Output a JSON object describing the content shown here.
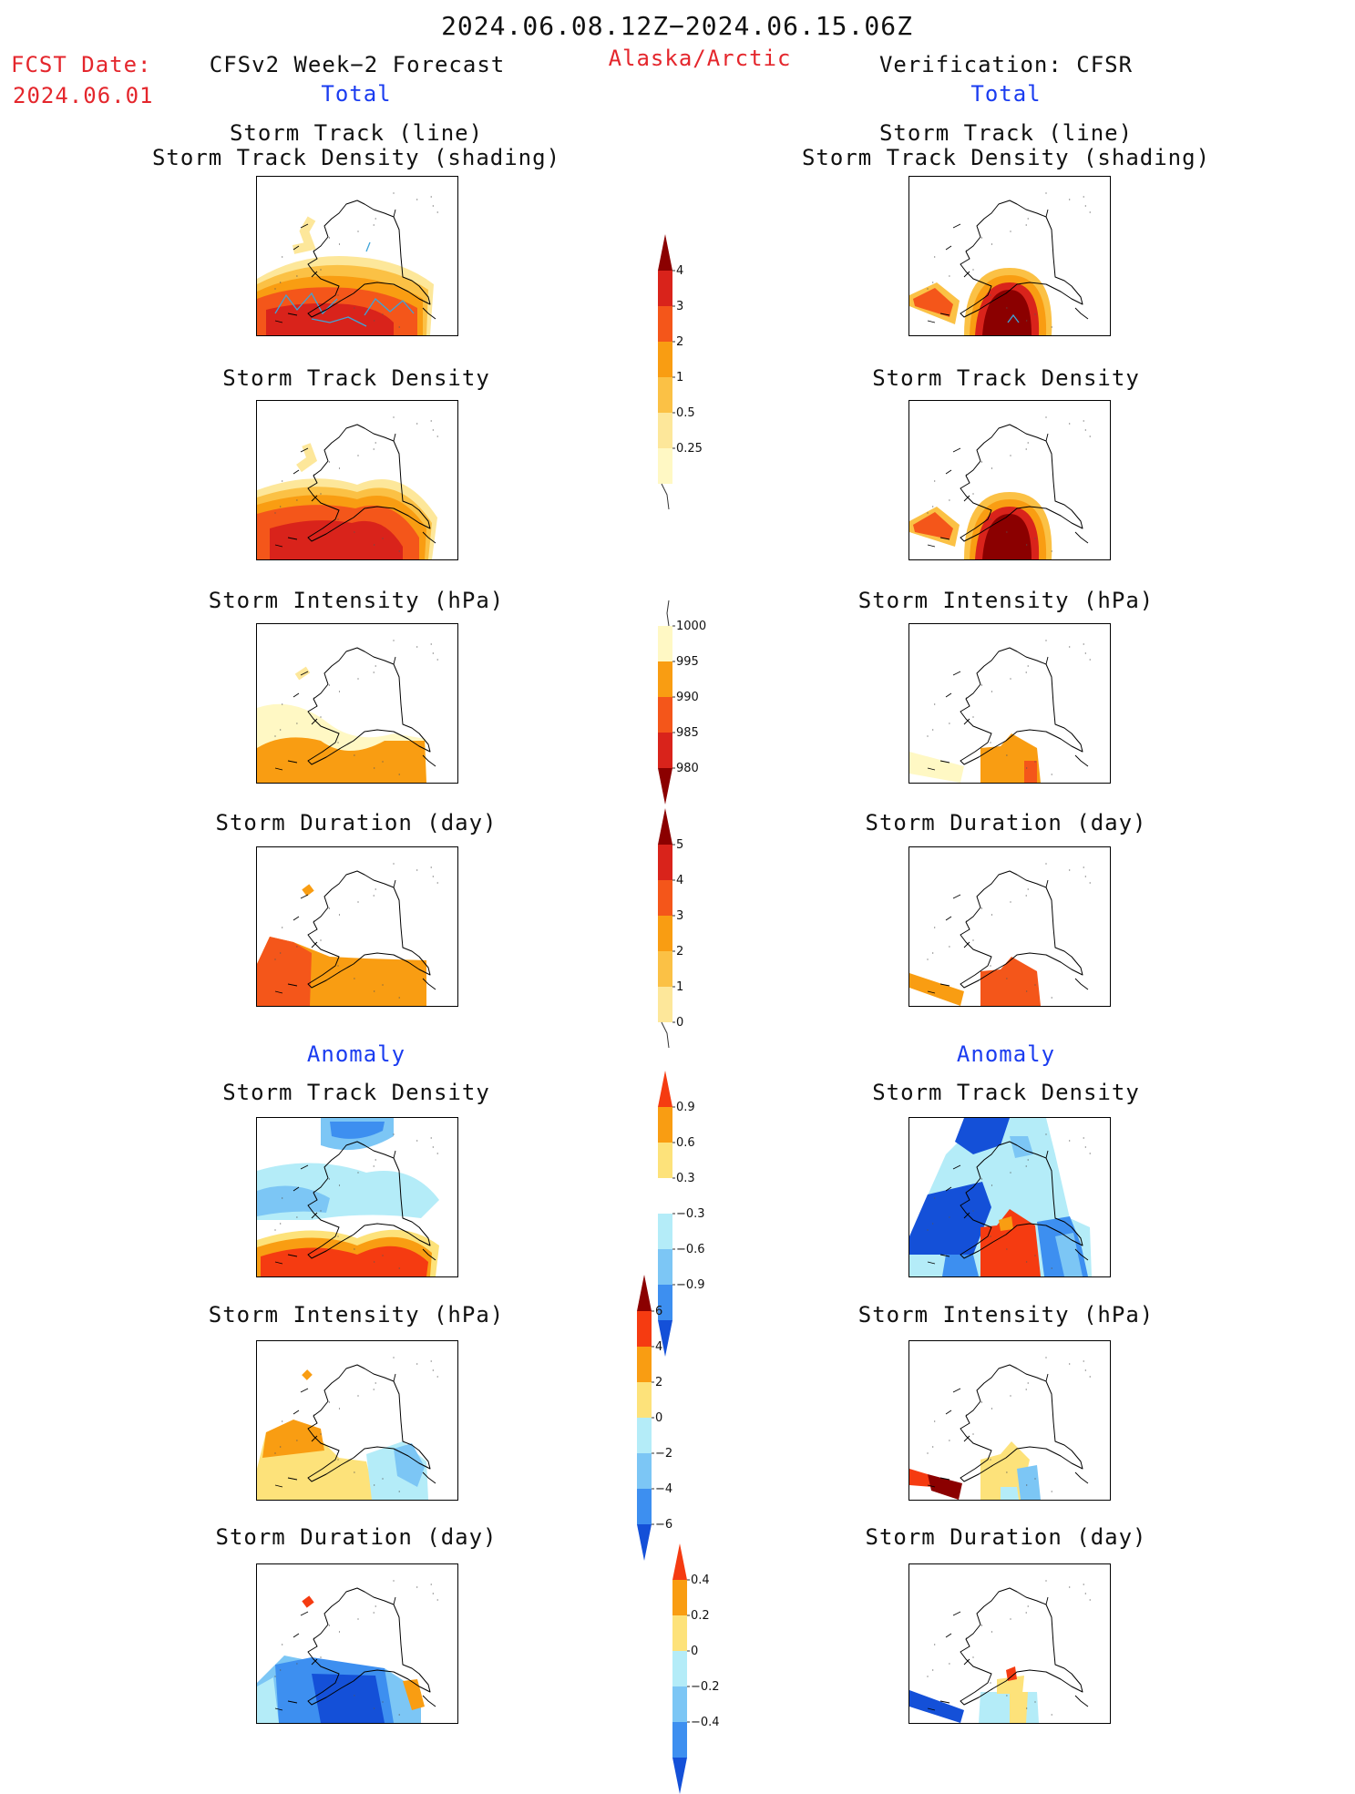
{
  "header": {
    "period": "2024.06.08.12Z−2024.06.15.06Z",
    "region": "Alaska/Arctic",
    "fcst_label": "FCST Date:",
    "fcst_date": "2024.06.01",
    "left_model": "CFSv2 Week−2 Forecast",
    "right_model": "Verification: CFSR",
    "total_label": "Total",
    "anomaly_label": "Anomaly"
  },
  "panel_titles": {
    "track": "Storm Track (line)\nStorm Track Density (shading)",
    "density": "Storm Track Density",
    "intensity": "Storm Intensity (hPa)",
    "duration": "Storm Duration (day)"
  },
  "colorbars": {
    "density": {
      "labels": [
        "4",
        "3",
        "2",
        "1",
        "0.5",
        "0.25"
      ],
      "colors": [
        "#8b0000",
        "#d9231b",
        "#f4561a",
        "#f99d12",
        "#fbc145",
        "#fde79a",
        "#fff8c4"
      ]
    },
    "intensity": {
      "labels": [
        "1000",
        "995",
        "990",
        "985",
        "980"
      ],
      "colors": [
        "#fff8c4",
        "#f99d12",
        "#f4561a",
        "#d9231b",
        "#8b0000"
      ]
    },
    "duration": {
      "labels": [
        "5",
        "4",
        "3",
        "2",
        "1",
        "0"
      ],
      "colors": [
        "#8b0000",
        "#d9231b",
        "#f4561a",
        "#f99d12",
        "#fbc145",
        "#fde79a"
      ]
    },
    "anom_density": {
      "labels": [
        "0.9",
        "0.6",
        "0.3",
        "−0.3",
        "−0.6",
        "−0.9"
      ],
      "colors": [
        "#f53b11",
        "#f99d12",
        "#fde27a",
        "#ffffff",
        "#b4ecf8",
        "#7cc6f5",
        "#3d8ff0",
        "#1450d8"
      ]
    },
    "anom_intensity": {
      "labels": [
        "6",
        "4",
        "2",
        "0",
        "−2",
        "−4",
        "−6"
      ],
      "colors": [
        "#8b0000",
        "#f53b11",
        "#f99d12",
        "#fde27a",
        "#b4ecf8",
        "#7cc6f5",
        "#3d8ff0",
        "#1450d8"
      ]
    },
    "anom_duration": {
      "labels": [
        "0.4",
        "0.2",
        "0",
        "−0.2",
        "−0.4"
      ],
      "colors": [
        "#f53b11",
        "#f99d12",
        "#fde27a",
        "#b4ecf8",
        "#7cc6f5",
        "#3d8ff0",
        "#1450d8"
      ]
    }
  },
  "palette": {
    "red_text": "#e4262c",
    "blue_text": "#1a3cf0",
    "track_line": "#3ea4d8"
  }
}
